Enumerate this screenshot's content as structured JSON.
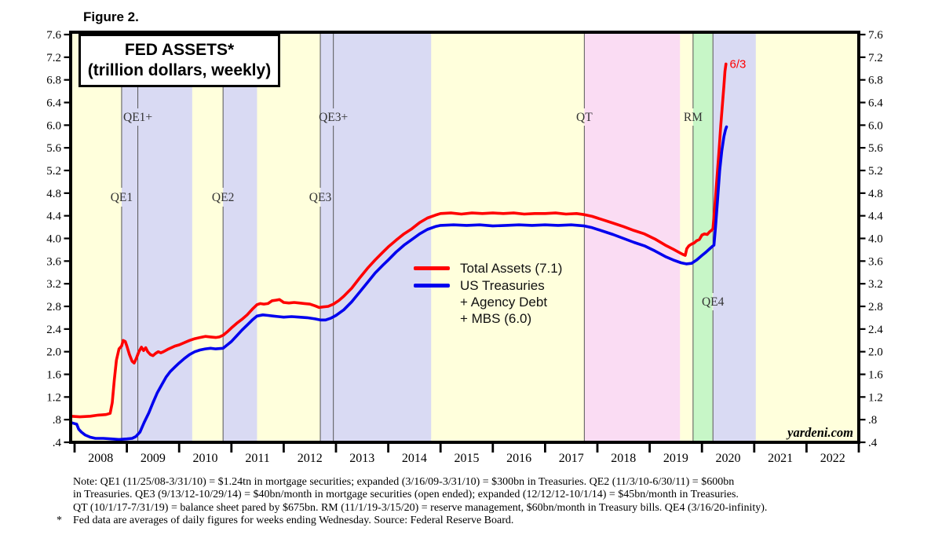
{
  "header": {
    "figure_label": "Figure 2."
  },
  "title": {
    "line1": "FED ASSETS*",
    "line2": "(trillion dollars, weekly)"
  },
  "legend": {
    "items": [
      {
        "label": "Total Assets (7.1)"
      },
      {
        "lines": [
          "US Treasuries",
          "+ Agency Debt",
          "+ MBS (6.0)"
        ]
      }
    ]
  },
  "watermark": "yardeni.com",
  "notes": {
    "lines": [
      "Note: QE1 (11/25/08-3/31/10) = $1.24tn in mortgage securities; expanded (3/16/09-3/31/10) = $300bn in Treasuries. QE2 (11/3/10-6/30/11) = $600bn",
      "in Treasuries. QE3 (9/13/12-10/29/14) = $40bn/month in mortgage securities (open ended); expanded (12/12/12-10/1/14) = $45bn/month in Treasuries.",
      "QT (10/1/17-7/31/19) = balance sheet pared by $675bn. RM (11/1/19-3/15/20) = reserve management, $60bn/month in Treasury bills. QE4 (3/16/20-infinity)."
    ],
    "footnote_marker": "*",
    "footnote_text": "Fed data are averages of daily figures for weeks ending Wednesday. Source: Federal Reserve Board."
  },
  "chart_data": {
    "type": "line",
    "title": "FED ASSETS* (trillion dollars, weekly)",
    "x_axis": {
      "range_years": [
        2007.92,
        2023.0
      ],
      "tick_years": [
        2008,
        2009,
        2010,
        2011,
        2012,
        2013,
        2014,
        2015,
        2016,
        2017,
        2018,
        2019,
        2020,
        2021,
        2022,
        2023
      ],
      "year_labels": [
        "2008",
        "2009",
        "2010",
        "2011",
        "2012",
        "2013",
        "2014",
        "2015",
        "2016",
        "2017",
        "2018",
        "2019",
        "2020",
        "2021",
        "2022"
      ]
    },
    "y_axis": {
      "min": 0.4,
      "max": 7.6,
      "step": 0.4,
      "tick_labels": [
        ".4",
        ".8",
        "1.2",
        "1.6",
        "2.0",
        "2.4",
        "2.8",
        "3.2",
        "3.6",
        "4.0",
        "4.4",
        "4.8",
        "5.2",
        "5.6",
        "6.0",
        "6.4",
        "6.8",
        "7.2",
        "7.6"
      ],
      "sides": "both",
      "grid": false
    },
    "colors": {
      "plot_bg": "#ffffdc",
      "qe_band": "#d9daf3",
      "qt_band": "#fadcf3",
      "rm_band": "#c7f6c7",
      "event_line": "#555555",
      "band_label": "#333333",
      "total_assets": "#ff0000",
      "treasuries": "#0000ee"
    },
    "bands": [
      {
        "name": "QE1",
        "start": 2008.9,
        "end": 2010.25,
        "color": "qe_band"
      },
      {
        "name": "QE2",
        "start": 2010.84,
        "end": 2011.49,
        "color": "qe_band"
      },
      {
        "name": "QE3",
        "start": 2012.7,
        "end": 2014.82,
        "color": "qe_band"
      },
      {
        "name": "QT",
        "start": 2017.75,
        "end": 2019.58,
        "color": "qt_band"
      },
      {
        "name": "RM",
        "start": 2019.83,
        "end": 2020.2,
        "color": "rm_band"
      },
      {
        "name": "QE4",
        "start": 2020.21,
        "end": 2021.03,
        "color": "qe_band"
      }
    ],
    "event_lines": [
      {
        "label": "QE1",
        "year": 2008.9,
        "row": "lower"
      },
      {
        "label": "QE1+",
        "year": 2009.21,
        "row": "upper"
      },
      {
        "label": "QE2",
        "year": 2010.84,
        "row": "lower"
      },
      {
        "label": "QE3",
        "year": 2012.7,
        "row": "lower"
      },
      {
        "label": "QE3+",
        "year": 2012.95,
        "row": "upper"
      },
      {
        "label": "QT",
        "year": 2017.75,
        "row": "upper"
      },
      {
        "label": "RM",
        "year": 2019.83,
        "row": "upper"
      },
      {
        "label": "QE4",
        "year": 2020.21,
        "row": "low"
      }
    ],
    "annotations": [
      {
        "text": "6/3",
        "year": 2020.53,
        "value": 7.08,
        "color": "#ff0000"
      }
    ],
    "series": [
      {
        "name": "Total Assets (7.1)",
        "color": "#ff0000",
        "points": [
          [
            2007.93,
            0.86
          ],
          [
            2008.1,
            0.85
          ],
          [
            2008.3,
            0.86
          ],
          [
            2008.45,
            0.88
          ],
          [
            2008.6,
            0.89
          ],
          [
            2008.68,
            0.91
          ],
          [
            2008.72,
            1.1
          ],
          [
            2008.76,
            1.5
          ],
          [
            2008.8,
            1.85
          ],
          [
            2008.85,
            2.05
          ],
          [
            2008.9,
            2.1
          ],
          [
            2008.93,
            2.2
          ],
          [
            2008.97,
            2.18
          ],
          [
            2009.0,
            2.1
          ],
          [
            2009.05,
            1.95
          ],
          [
            2009.1,
            1.83
          ],
          [
            2009.14,
            1.8
          ],
          [
            2009.18,
            1.88
          ],
          [
            2009.23,
            2.0
          ],
          [
            2009.28,
            2.08
          ],
          [
            2009.32,
            2.02
          ],
          [
            2009.36,
            2.07
          ],
          [
            2009.4,
            2.0
          ],
          [
            2009.45,
            1.95
          ],
          [
            2009.5,
            1.93
          ],
          [
            2009.55,
            1.97
          ],
          [
            2009.6,
            2.0
          ],
          [
            2009.65,
            1.98
          ],
          [
            2009.7,
            2.0
          ],
          [
            2009.78,
            2.04
          ],
          [
            2009.85,
            2.07
          ],
          [
            2009.92,
            2.1
          ],
          [
            2010.0,
            2.12
          ],
          [
            2010.1,
            2.16
          ],
          [
            2010.2,
            2.2
          ],
          [
            2010.3,
            2.23
          ],
          [
            2010.4,
            2.25
          ],
          [
            2010.5,
            2.27
          ],
          [
            2010.6,
            2.26
          ],
          [
            2010.7,
            2.25
          ],
          [
            2010.77,
            2.26
          ],
          [
            2010.84,
            2.29
          ],
          [
            2010.92,
            2.35
          ],
          [
            2011.0,
            2.42
          ],
          [
            2011.1,
            2.5
          ],
          [
            2011.2,
            2.57
          ],
          [
            2011.3,
            2.65
          ],
          [
            2011.4,
            2.75
          ],
          [
            2011.49,
            2.83
          ],
          [
            2011.55,
            2.85
          ],
          [
            2011.62,
            2.84
          ],
          [
            2011.7,
            2.85
          ],
          [
            2011.78,
            2.9
          ],
          [
            2011.85,
            2.91
          ],
          [
            2011.92,
            2.92
          ],
          [
            2012.0,
            2.87
          ],
          [
            2012.1,
            2.86
          ],
          [
            2012.2,
            2.87
          ],
          [
            2012.3,
            2.86
          ],
          [
            2012.4,
            2.85
          ],
          [
            2012.5,
            2.84
          ],
          [
            2012.6,
            2.81
          ],
          [
            2012.68,
            2.78
          ],
          [
            2012.75,
            2.79
          ],
          [
            2012.85,
            2.8
          ],
          [
            2012.95,
            2.84
          ],
          [
            2013.05,
            2.9
          ],
          [
            2013.15,
            2.98
          ],
          [
            2013.3,
            3.12
          ],
          [
            2013.45,
            3.3
          ],
          [
            2013.6,
            3.47
          ],
          [
            2013.75,
            3.62
          ],
          [
            2013.9,
            3.76
          ],
          [
            2014.0,
            3.85
          ],
          [
            2014.15,
            3.97
          ],
          [
            2014.3,
            4.08
          ],
          [
            2014.45,
            4.17
          ],
          [
            2014.6,
            4.28
          ],
          [
            2014.75,
            4.36
          ],
          [
            2014.9,
            4.41
          ],
          [
            2015.0,
            4.44
          ],
          [
            2015.2,
            4.45
          ],
          [
            2015.4,
            4.43
          ],
          [
            2015.6,
            4.45
          ],
          [
            2015.8,
            4.44
          ],
          [
            2016.0,
            4.45
          ],
          [
            2016.2,
            4.44
          ],
          [
            2016.4,
            4.45
          ],
          [
            2016.6,
            4.43
          ],
          [
            2016.8,
            4.44
          ],
          [
            2017.0,
            4.44
          ],
          [
            2017.2,
            4.45
          ],
          [
            2017.4,
            4.43
          ],
          [
            2017.6,
            4.44
          ],
          [
            2017.75,
            4.42
          ],
          [
            2017.9,
            4.39
          ],
          [
            2018.1,
            4.33
          ],
          [
            2018.3,
            4.27
          ],
          [
            2018.5,
            4.21
          ],
          [
            2018.7,
            4.14
          ],
          [
            2018.9,
            4.08
          ],
          [
            2019.1,
            3.99
          ],
          [
            2019.3,
            3.88
          ],
          [
            2019.45,
            3.81
          ],
          [
            2019.55,
            3.76
          ],
          [
            2019.63,
            3.72
          ],
          [
            2019.68,
            3.7
          ],
          [
            2019.71,
            3.82
          ],
          [
            2019.75,
            3.87
          ],
          [
            2019.8,
            3.9
          ],
          [
            2019.85,
            3.92
          ],
          [
            2019.9,
            3.96
          ],
          [
            2019.95,
            3.98
          ],
          [
            2020.0,
            4.06
          ],
          [
            2020.05,
            4.08
          ],
          [
            2020.1,
            4.07
          ],
          [
            2020.15,
            4.12
          ],
          [
            2020.18,
            4.14
          ],
          [
            2020.21,
            4.17
          ],
          [
            2020.25,
            4.6
          ],
          [
            2020.29,
            5.1
          ],
          [
            2020.33,
            5.6
          ],
          [
            2020.36,
            6.0
          ],
          [
            2020.39,
            6.35
          ],
          [
            2020.42,
            6.7
          ],
          [
            2020.44,
            6.95
          ],
          [
            2020.46,
            7.08
          ]
        ]
      },
      {
        "name": "US Treasuries + Agency Debt + MBS (6.0)",
        "color": "#0000ee",
        "points": [
          [
            2007.93,
            0.75
          ],
          [
            2008.0,
            0.73
          ],
          [
            2008.04,
            0.72
          ],
          [
            2008.08,
            0.63
          ],
          [
            2008.13,
            0.58
          ],
          [
            2008.2,
            0.53
          ],
          [
            2008.3,
            0.49
          ],
          [
            2008.4,
            0.47
          ],
          [
            2008.55,
            0.47
          ],
          [
            2008.7,
            0.46
          ],
          [
            2008.85,
            0.45
          ],
          [
            2009.0,
            0.46
          ],
          [
            2009.1,
            0.47
          ],
          [
            2009.17,
            0.5
          ],
          [
            2009.25,
            0.58
          ],
          [
            2009.33,
            0.75
          ],
          [
            2009.42,
            0.92
          ],
          [
            2009.5,
            1.1
          ],
          [
            2009.58,
            1.27
          ],
          [
            2009.67,
            1.42
          ],
          [
            2009.75,
            1.55
          ],
          [
            2009.83,
            1.65
          ],
          [
            2009.92,
            1.73
          ],
          [
            2010.0,
            1.8
          ],
          [
            2010.1,
            1.88
          ],
          [
            2010.2,
            1.95
          ],
          [
            2010.3,
            2.0
          ],
          [
            2010.4,
            2.03
          ],
          [
            2010.5,
            2.05
          ],
          [
            2010.6,
            2.06
          ],
          [
            2010.7,
            2.05
          ],
          [
            2010.84,
            2.06
          ],
          [
            2010.92,
            2.12
          ],
          [
            2011.0,
            2.18
          ],
          [
            2011.1,
            2.28
          ],
          [
            2011.2,
            2.38
          ],
          [
            2011.3,
            2.47
          ],
          [
            2011.4,
            2.56
          ],
          [
            2011.49,
            2.63
          ],
          [
            2011.6,
            2.65
          ],
          [
            2011.7,
            2.64
          ],
          [
            2011.8,
            2.63
          ],
          [
            2011.9,
            2.62
          ],
          [
            2012.0,
            2.61
          ],
          [
            2012.15,
            2.62
          ],
          [
            2012.3,
            2.61
          ],
          [
            2012.45,
            2.6
          ],
          [
            2012.6,
            2.58
          ],
          [
            2012.7,
            2.56
          ],
          [
            2012.8,
            2.56
          ],
          [
            2012.9,
            2.59
          ],
          [
            2013.0,
            2.64
          ],
          [
            2013.15,
            2.74
          ],
          [
            2013.3,
            2.88
          ],
          [
            2013.45,
            3.05
          ],
          [
            2013.6,
            3.22
          ],
          [
            2013.75,
            3.39
          ],
          [
            2013.9,
            3.53
          ],
          [
            2014.0,
            3.62
          ],
          [
            2014.15,
            3.76
          ],
          [
            2014.3,
            3.88
          ],
          [
            2014.45,
            3.98
          ],
          [
            2014.6,
            4.08
          ],
          [
            2014.75,
            4.16
          ],
          [
            2014.9,
            4.21
          ],
          [
            2015.0,
            4.23
          ],
          [
            2015.25,
            4.24
          ],
          [
            2015.5,
            4.23
          ],
          [
            2015.75,
            4.24
          ],
          [
            2016.0,
            4.22
          ],
          [
            2016.25,
            4.23
          ],
          [
            2016.5,
            4.24
          ],
          [
            2016.75,
            4.23
          ],
          [
            2017.0,
            4.24
          ],
          [
            2017.25,
            4.23
          ],
          [
            2017.5,
            4.24
          ],
          [
            2017.75,
            4.22
          ],
          [
            2017.9,
            4.19
          ],
          [
            2018.1,
            4.13
          ],
          [
            2018.3,
            4.07
          ],
          [
            2018.5,
            4.0
          ],
          [
            2018.7,
            3.93
          ],
          [
            2018.9,
            3.87
          ],
          [
            2019.1,
            3.78
          ],
          [
            2019.3,
            3.68
          ],
          [
            2019.45,
            3.62
          ],
          [
            2019.6,
            3.57
          ],
          [
            2019.7,
            3.55
          ],
          [
            2019.8,
            3.56
          ],
          [
            2019.9,
            3.62
          ],
          [
            2020.0,
            3.7
          ],
          [
            2020.08,
            3.76
          ],
          [
            2020.15,
            3.82
          ],
          [
            2020.2,
            3.86
          ],
          [
            2020.23,
            3.88
          ],
          [
            2020.26,
            4.2
          ],
          [
            2020.3,
            4.7
          ],
          [
            2020.34,
            5.2
          ],
          [
            2020.38,
            5.55
          ],
          [
            2020.42,
            5.8
          ],
          [
            2020.45,
            5.92
          ],
          [
            2020.47,
            5.97
          ]
        ]
      }
    ]
  }
}
